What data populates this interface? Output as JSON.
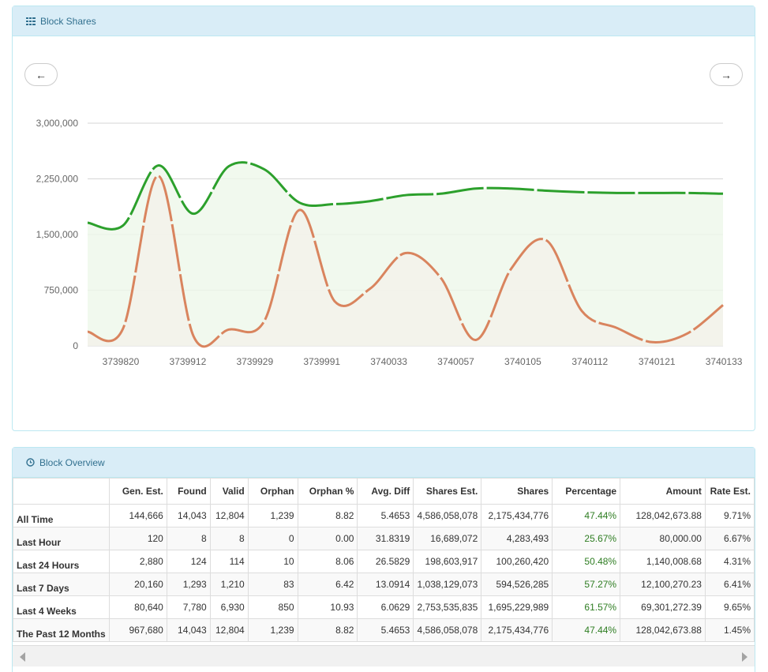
{
  "block_shares": {
    "title": "Block Shares",
    "prev_label": "←",
    "next_label": "→"
  },
  "chart_data": {
    "type": "area",
    "categories": [
      "3739820",
      "3739912",
      "3739929",
      "3739991",
      "3740033",
      "3740057",
      "3740105",
      "3740112",
      "3740121",
      "3740133"
    ],
    "x": [
      "3739820",
      "3739820",
      "3739912",
      "3739912",
      "3739929",
      "3739929",
      "3739991",
      "3739991",
      "3740033",
      "3740033",
      "3740057",
      "3740057",
      "3740105",
      "3740105",
      "3740112",
      "3740112",
      "3740121",
      "3740121",
      "3740133"
    ],
    "yticks": [
      0,
      750000,
      1500000,
      2250000,
      3000000
    ],
    "ytick_labels": [
      "0",
      "750,000",
      "1,500,000",
      "2,250,000",
      "3,000,000"
    ],
    "ylim": [
      0,
      3000000
    ],
    "grid": true,
    "series": [
      {
        "color": "#2ca02c",
        "values": [
          1660000,
          1620000,
          2430000,
          1780000,
          2420000,
          2380000,
          1930000,
          1910000,
          1950000,
          2030000,
          2050000,
          2120000,
          2120000,
          2090000,
          2070000,
          2060000,
          2060000,
          2060000,
          2050000
        ]
      },
      {
        "color": "#d9845e",
        "values": [
          190000,
          230000,
          2290000,
          130000,
          220000,
          330000,
          1830000,
          600000,
          770000,
          1250000,
          920000,
          80000,
          1040000,
          1420000,
          470000,
          240000,
          50000,
          170000,
          550000
        ]
      }
    ]
  },
  "block_overview": {
    "title": "Block Overview",
    "columns": [
      "",
      "Gen. Est.",
      "Found",
      "Valid",
      "Orphan",
      "Orphan %",
      "Avg. Diff",
      "Shares Est.",
      "Shares",
      "Percentage",
      "Amount",
      "Rate Est."
    ],
    "rows": [
      [
        "All Time",
        "144,666",
        "14,043",
        "12,804",
        "1,239",
        "8.82",
        "5.4653",
        "4,586,058,078",
        "2,175,434,776",
        "47.44%",
        "128,042,673.88",
        "9.71%"
      ],
      [
        "Last Hour",
        "120",
        "8",
        "8",
        "0",
        "0.00",
        "31.8319",
        "16,689,072",
        "4,283,493",
        "25.67%",
        "80,000.00",
        "6.67%"
      ],
      [
        "Last 24 Hours",
        "2,880",
        "124",
        "114",
        "10",
        "8.06",
        "26.5829",
        "198,603,917",
        "100,260,420",
        "50.48%",
        "1,140,008.68",
        "4.31%"
      ],
      [
        "Last 7 Days",
        "20,160",
        "1,293",
        "1,210",
        "83",
        "6.42",
        "13.0914",
        "1,038,129,073",
        "594,526,285",
        "57.27%",
        "12,100,270.23",
        "6.41%"
      ],
      [
        "Last 4 Weeks",
        "80,640",
        "7,780",
        "6,930",
        "850",
        "10.93",
        "6.0629",
        "2,753,535,835",
        "1,695,229,989",
        "61.57%",
        "69,301,272.39",
        "9.65%"
      ],
      [
        "The Past 12 Months",
        "967,680",
        "14,043",
        "12,804",
        "1,239",
        "8.82",
        "5.4653",
        "4,586,058,078",
        "2,175,434,776",
        "47.44%",
        "128,042,673.88",
        "1.45%"
      ]
    ]
  }
}
